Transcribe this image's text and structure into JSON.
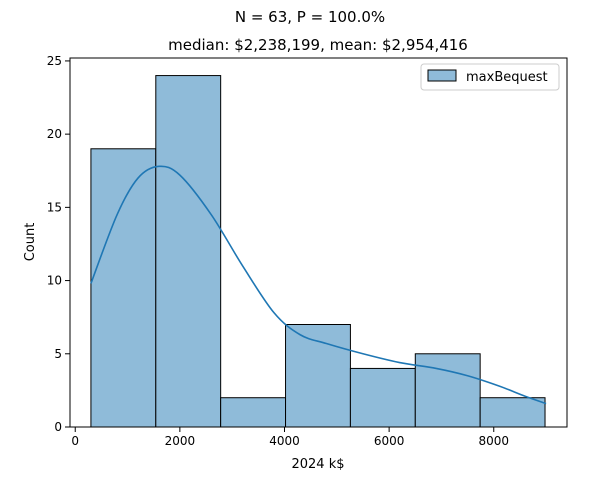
{
  "chart_data": {
    "type": "bar",
    "title": "N = 63, P = 100.0%",
    "subtitle": "median: $2,238,199,  mean: $2,954,416",
    "xlabel": "2024 k$",
    "ylabel": "Count",
    "xlim": [
      -100,
      9400
    ],
    "ylim": [
      0,
      25.2
    ],
    "xticks": [
      0,
      2000,
      4000,
      6000,
      8000
    ],
    "yticks": [
      0,
      5,
      10,
      15,
      20,
      25
    ],
    "bins": [
      {
        "x0": 300,
        "x1": 1540,
        "count": 19
      },
      {
        "x0": 1540,
        "x1": 2780,
        "count": 24
      },
      {
        "x0": 2780,
        "x1": 4020,
        "count": 2
      },
      {
        "x0": 4020,
        "x1": 5260,
        "count": 7
      },
      {
        "x0": 5260,
        "x1": 6500,
        "count": 4
      },
      {
        "x0": 6500,
        "x1": 7740,
        "count": 5
      },
      {
        "x0": 7740,
        "x1": 8980,
        "count": 2
      }
    ],
    "kde": {
      "x": [
        300,
        800,
        1200,
        1600,
        2000,
        2600,
        3200,
        3800,
        4300,
        4800,
        5500,
        6200,
        6900,
        7500,
        8100,
        8600,
        9000
      ],
      "y": [
        9.8,
        14.5,
        17.0,
        17.8,
        17.2,
        14.5,
        11.0,
        7.8,
        6.3,
        5.7,
        5.0,
        4.4,
        4.0,
        3.5,
        2.8,
        2.1,
        1.6
      ]
    },
    "legend": {
      "label": "maxBequest",
      "position": "top-right"
    },
    "colors": {
      "bar_fill": "#8fbbd9",
      "bar_edge": "#000000",
      "kde_line": "#1f77b4"
    }
  }
}
